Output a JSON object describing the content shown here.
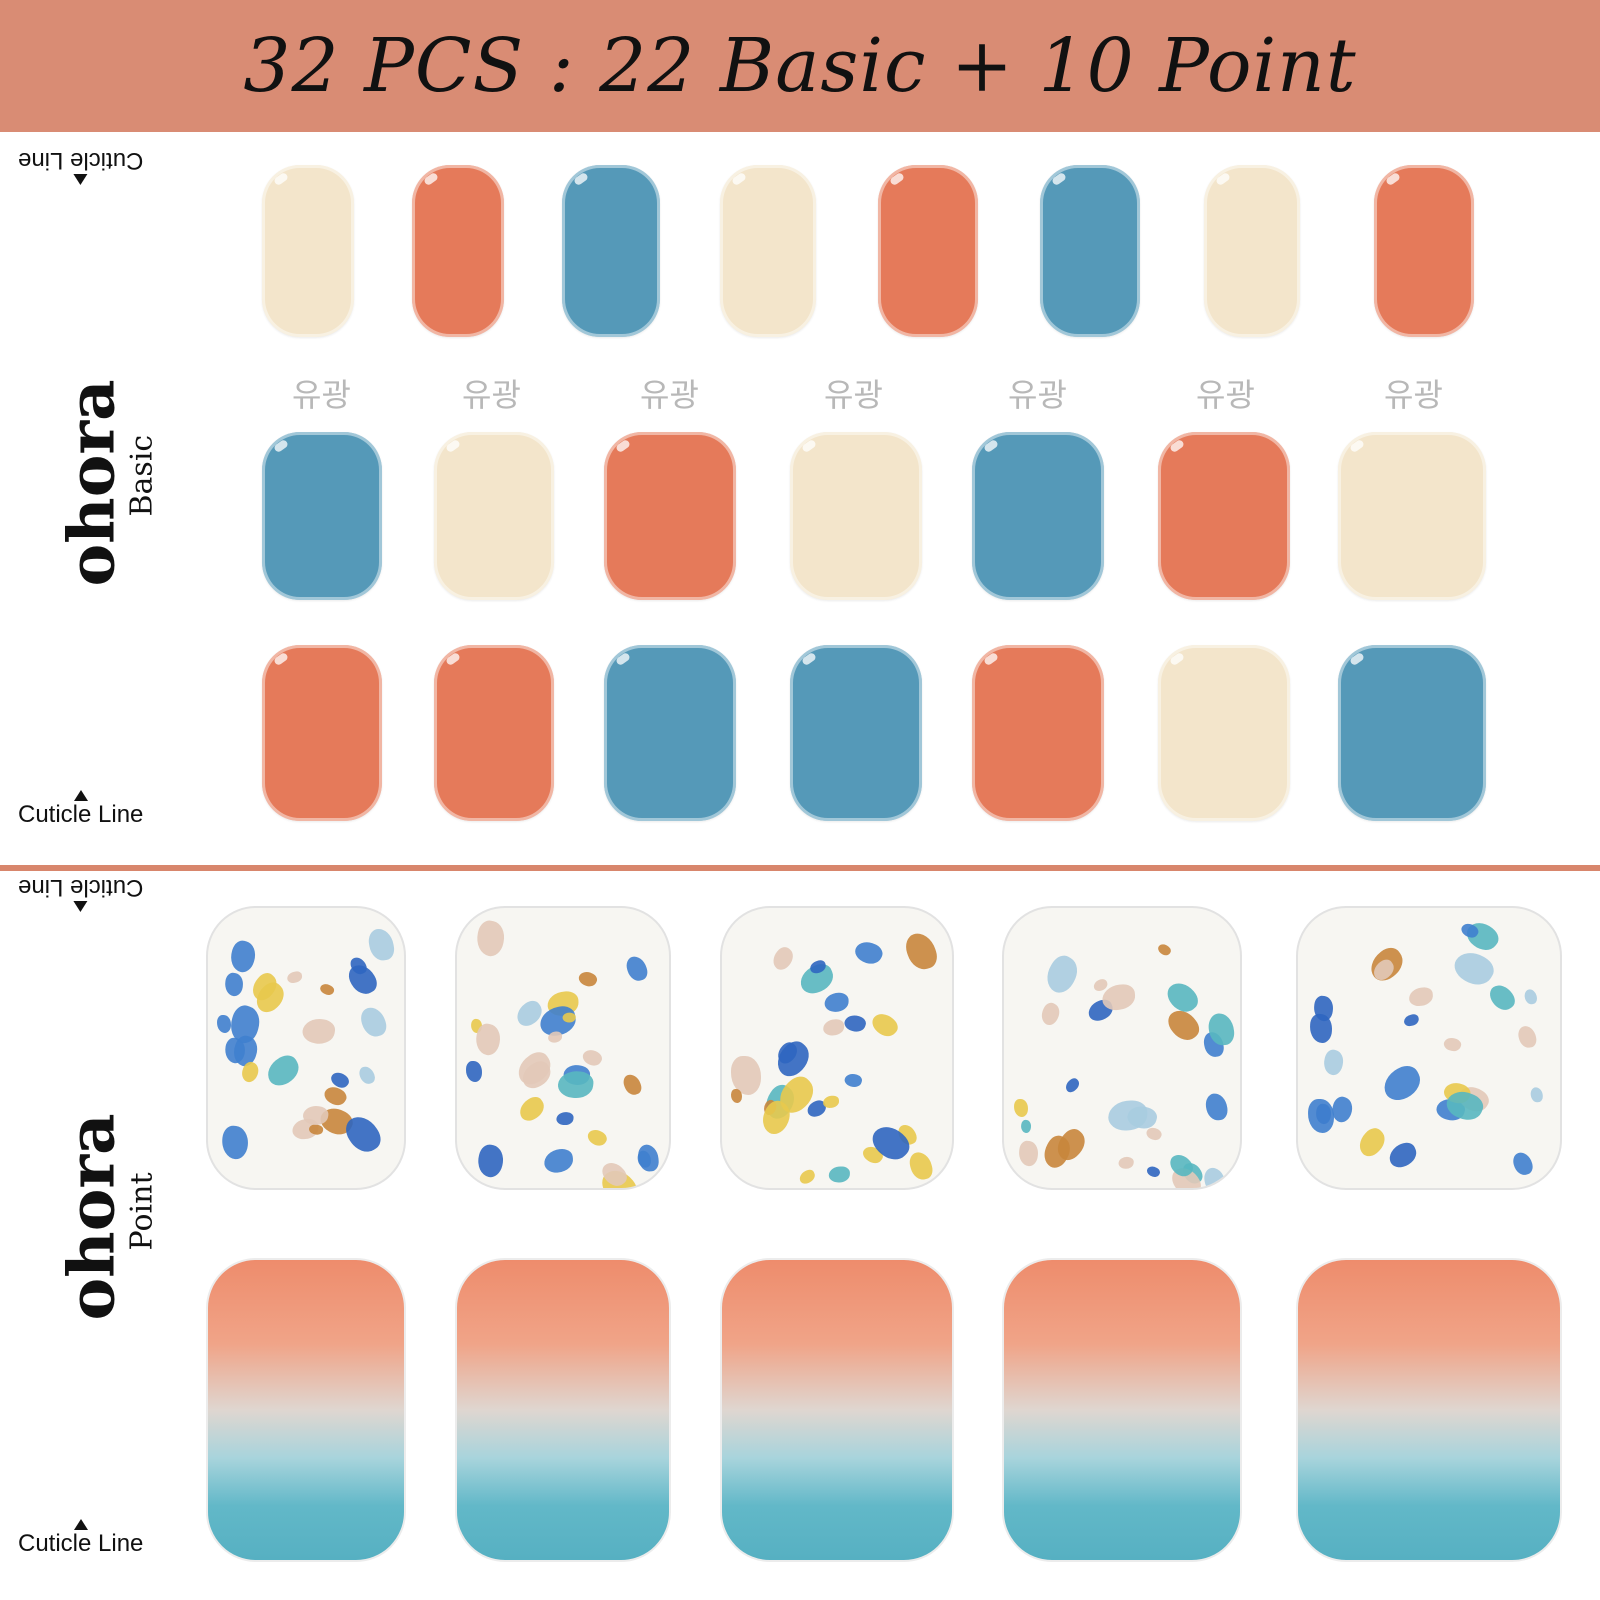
{
  "banner": {
    "title": "32 PCS : 22 Basic + 10 Point"
  },
  "basic_panel": {
    "brand": "ohora",
    "subtitle": "Basic",
    "cuticle_top": "Cuticle Line",
    "cuticle_bottom": "Cuticle Line",
    "gloss_labels": [
      "유광",
      "유광",
      "유광",
      "유광",
      "유광",
      "유광",
      "유광"
    ],
    "rows": [
      [
        "cream",
        "orange",
        "blue",
        "cream",
        "orange",
        "blue",
        "cream",
        "orange"
      ],
      [
        "blue",
        "cream",
        "orange",
        "cream",
        "blue",
        "orange",
        "cream"
      ],
      [
        "orange",
        "orange",
        "blue",
        "blue",
        "orange",
        "cream",
        "blue"
      ]
    ]
  },
  "point_panel": {
    "brand": "ohora",
    "subtitle": "Point",
    "cuticle_top": "Cuticle Line",
    "cuticle_bottom": "Cuticle Line",
    "rows": [
      [
        "terrazzo",
        "terrazzo",
        "terrazzo",
        "terrazzo",
        "terrazzo"
      ],
      [
        "gradient",
        "gradient",
        "gradient",
        "gradient",
        "gradient"
      ]
    ]
  },
  "colors": {
    "banner": "#d98c74",
    "divider": "#d8866c",
    "cream": "#f3e5cb",
    "orange": "#e57a5a",
    "blue": "#5599b8",
    "gradient_top": "#ee8c6c",
    "gradient_bottom": "#56b0c2"
  }
}
